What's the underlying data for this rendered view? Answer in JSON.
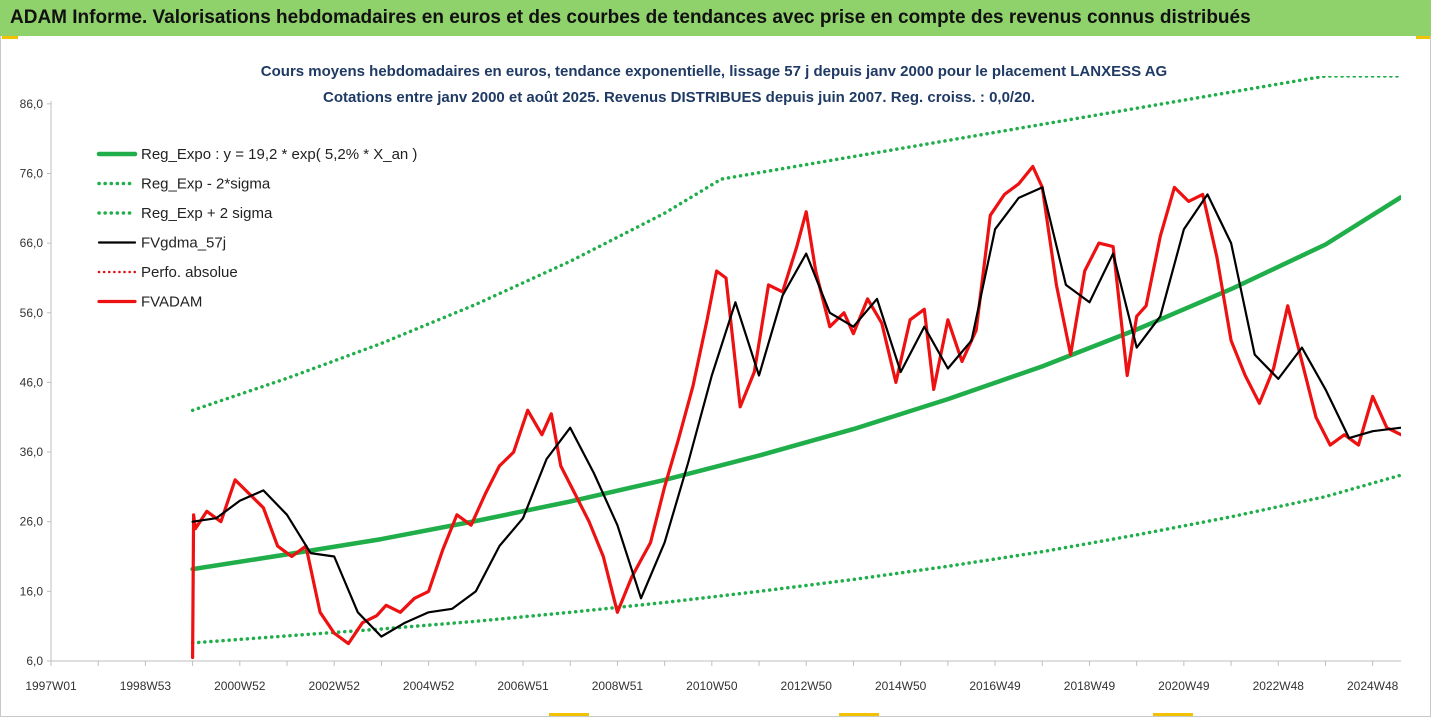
{
  "banner": {
    "title": "ADAM Informe. Valorisations hebdomadaires en euros et des courbes de tendances avec prise en compte des revenus connus distribués"
  },
  "colors": {
    "banner": "#8fd16b",
    "reg_expo": "#1fae4a",
    "sigma": "#1fae4a",
    "fvgdma": "#000000",
    "perfo": "#e01010",
    "fvadam": "#ee1111"
  },
  "chart_data": {
    "type": "line",
    "title": "Cours moyens hebdomadaires en euros, tendance exponentielle, lissage 57 j depuis janv 2000 pour le placement LANXESS AG",
    "subtitle": "Cotations entre janv 2000 et août 2025. Revenus DISTRIBUES depuis juin 2007. Reg. croiss. : 0,0/20.",
    "xlabel": "",
    "ylabel": "",
    "ylim": [
      6,
      90
    ],
    "xlim": [
      1997.0,
      2025.6
    ],
    "grid": false,
    "legend_position": "top-left",
    "y_ticks": [
      "6,0",
      "16,0",
      "26,0",
      "36,0",
      "46,0",
      "56,0",
      "66,0",
      "76,0",
      "86,0"
    ],
    "x_ticks": [
      {
        "label": "1997W01",
        "x": 1997.0
      },
      {
        "label": "1998W53",
        "x": 1999.0
      },
      {
        "label": "2000W52",
        "x": 2001.0
      },
      {
        "label": "2002W52",
        "x": 2003.0
      },
      {
        "label": "2004W52",
        "x": 2005.0
      },
      {
        "label": "2006W51",
        "x": 2007.0
      },
      {
        "label": "2008W51",
        "x": 2009.0
      },
      {
        "label": "2010W50",
        "x": 2011.0
      },
      {
        "label": "2012W50",
        "x": 2013.0
      },
      {
        "label": "2014W50",
        "x": 2015.0
      },
      {
        "label": "2016W49",
        "x": 2017.0
      },
      {
        "label": "2018W49",
        "x": 2019.0
      },
      {
        "label": "2020W49",
        "x": 2021.0
      },
      {
        "label": "2022W48",
        "x": 2023.0
      },
      {
        "label": "2024W48",
        "x": 2025.0
      }
    ],
    "series": [
      {
        "name": "Reg_Expo : y = 19,2 * exp( 5,2% *  X_an )",
        "style": "solid",
        "x": [
          2000.0,
          2002.0,
          2004.0,
          2006.0,
          2008.0,
          2010.0,
          2012.0,
          2014.0,
          2016.0,
          2018.0,
          2020.0,
          2022.0,
          2024.0,
          2025.6
        ],
        "y": [
          19.2,
          21.3,
          23.5,
          26.1,
          28.9,
          32.0,
          35.5,
          39.3,
          43.6,
          48.3,
          53.6,
          59.4,
          65.8,
          72.6
        ]
      },
      {
        "name": "Reg_Exp - 2*sigma",
        "style": "dotted",
        "x": [
          2000.0,
          2002.0,
          2004.0,
          2006.0,
          2008.0,
          2010.0,
          2012.0,
          2014.0,
          2016.0,
          2018.0,
          2020.0,
          2022.0,
          2024.0,
          2025.6
        ],
        "y": [
          8.6,
          9.6,
          10.6,
          11.7,
          13.0,
          14.4,
          16.0,
          17.7,
          19.6,
          21.7,
          24.1,
          26.7,
          29.6,
          32.7
        ]
      },
      {
        "name": "Reg_Exp + 2 sigma",
        "style": "dotted",
        "x": [
          2000.0,
          2002.0,
          2004.0,
          2006.0,
          2008.0,
          2010.0,
          2011.2,
          2024.0,
          2025.6
        ],
        "y": [
          42.0,
          46.6,
          51.6,
          57.2,
          63.4,
          70.3,
          75.2,
          90.0,
          90.0
        ]
      },
      {
        "name": "FVgdma_57j",
        "style": "solid",
        "x": [
          2000.0,
          2000.5,
          2001.0,
          2001.5,
          2002.0,
          2002.5,
          2003.0,
          2003.5,
          2004.0,
          2004.5,
          2005.0,
          2005.5,
          2006.0,
          2006.5,
          2007.0,
          2007.5,
          2008.0,
          2008.5,
          2009.0,
          2009.5,
          2010.0,
          2010.5,
          2011.0,
          2011.5,
          2012.0,
          2012.5,
          2013.0,
          2013.5,
          2014.0,
          2014.5,
          2015.0,
          2015.5,
          2016.0,
          2016.5,
          2017.0,
          2017.5,
          2018.0,
          2018.5,
          2019.0,
          2019.5,
          2020.0,
          2020.5,
          2021.0,
          2021.5,
          2022.0,
          2022.5,
          2023.0,
          2023.5,
          2024.0,
          2024.5,
          2025.0,
          2025.6
        ],
        "y": [
          26.0,
          26.5,
          29.0,
          30.5,
          27.0,
          21.5,
          21.0,
          13.0,
          9.5,
          11.5,
          13.0,
          13.5,
          16.0,
          22.5,
          26.5,
          35.0,
          39.5,
          33.0,
          25.5,
          15.0,
          23.0,
          34.5,
          47.0,
          57.5,
          47.0,
          58.5,
          64.5,
          56.0,
          54.0,
          58.0,
          47.5,
          54.0,
          48.0,
          52.0,
          68.0,
          72.5,
          74.0,
          60.0,
          57.5,
          64.5,
          51.0,
          55.5,
          68.0,
          73.0,
          66.0,
          50.0,
          46.5,
          51.0,
          45.0,
          38.0,
          39.0,
          39.5
        ]
      },
      {
        "name": "Perfo. absolue",
        "style": "dotted",
        "x": [],
        "y": []
      },
      {
        "name": "FVADAM",
        "style": "solid",
        "x": [
          2000.0,
          2000.02,
          2000.06,
          2000.3,
          2000.6,
          2000.9,
          2001.2,
          2001.5,
          2001.8,
          2002.1,
          2002.4,
          2002.7,
          2003.0,
          2003.3,
          2003.6,
          2003.9,
          2004.1,
          2004.4,
          2004.7,
          2005.0,
          2005.3,
          2005.6,
          2005.9,
          2006.2,
          2006.5,
          2006.8,
          2007.1,
          2007.4,
          2007.6,
          2007.8,
          2008.1,
          2008.4,
          2008.7,
          2009.0,
          2009.3,
          2009.5,
          2009.7,
          2010.0,
          2010.3,
          2010.6,
          2010.9,
          2011.1,
          2011.3,
          2011.6,
          2011.9,
          2012.2,
          2012.5,
          2012.8,
          2013.0,
          2013.2,
          2013.5,
          2013.8,
          2014.0,
          2014.3,
          2014.6,
          2014.9,
          2015.2,
          2015.5,
          2015.7,
          2016.0,
          2016.3,
          2016.6,
          2016.9,
          2017.2,
          2017.5,
          2017.8,
          2018.0,
          2018.3,
          2018.6,
          2018.9,
          2019.2,
          2019.5,
          2019.8,
          2020.0,
          2020.2,
          2020.5,
          2020.8,
          2021.1,
          2021.4,
          2021.7,
          2022.0,
          2022.3,
          2022.6,
          2022.9,
          2023.2,
          2023.5,
          2023.8,
          2024.1,
          2024.4,
          2024.7,
          2025.0,
          2025.3,
          2025.6
        ],
        "y": [
          6.5,
          27.0,
          25.0,
          27.5,
          26.0,
          32.0,
          30.0,
          28.0,
          22.5,
          21.0,
          22.5,
          13.0,
          10.0,
          8.5,
          11.5,
          12.5,
          14.0,
          13.0,
          15.0,
          16.0,
          22.0,
          27.0,
          25.5,
          30.0,
          34.0,
          36.0,
          42.0,
          38.5,
          41.5,
          34.0,
          30.0,
          26.0,
          21.0,
          13.0,
          18.0,
          20.5,
          23.0,
          31.0,
          38.0,
          45.5,
          55.0,
          62.0,
          61.0,
          42.5,
          47.5,
          60.0,
          59.0,
          65.5,
          70.5,
          62.0,
          54.0,
          56.0,
          53.0,
          58.0,
          54.5,
          46.0,
          55.0,
          56.5,
          45.0,
          55.0,
          49.0,
          53.5,
          70.0,
          73.0,
          74.5,
          77.0,
          74.0,
          60.0,
          50.0,
          62.0,
          66.0,
          65.5,
          47.0,
          55.5,
          57.0,
          67.0,
          74.0,
          72.0,
          73.0,
          64.0,
          52.0,
          47.0,
          43.0,
          48.0,
          57.0,
          49.0,
          41.0,
          37.0,
          38.5,
          37.0,
          44.0,
          39.5,
          38.5
        ]
      }
    ]
  }
}
